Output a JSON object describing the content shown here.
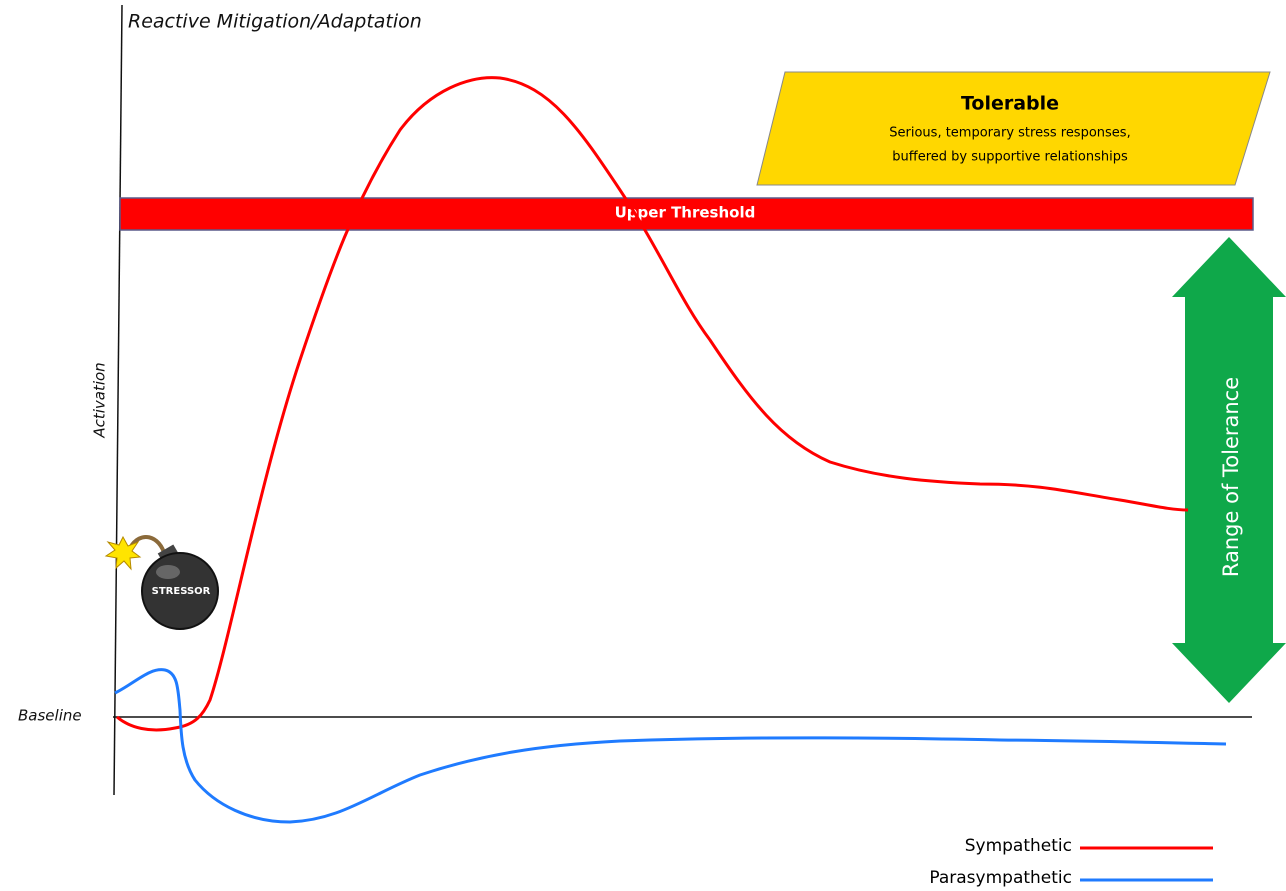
{
  "header": {
    "title": "Reactive Mitigation/Adaptation"
  },
  "tolerable": {
    "title": "Tolerable",
    "lines": [
      "Serious, temporary stress responses,",
      "buffered by supportive relationships"
    ]
  },
  "upper_threshold": "Upper Threshold",
  "range": "Range of Tolerance",
  "axis": {
    "y_label": "Activation",
    "baseline": "Baseline"
  },
  "stressor": "STRESSOR",
  "legend": [
    {
      "name": "Sympathetic",
      "color": "#ff0000"
    },
    {
      "name": "Parasympathetic",
      "color": "#1f7bff"
    }
  ]
}
